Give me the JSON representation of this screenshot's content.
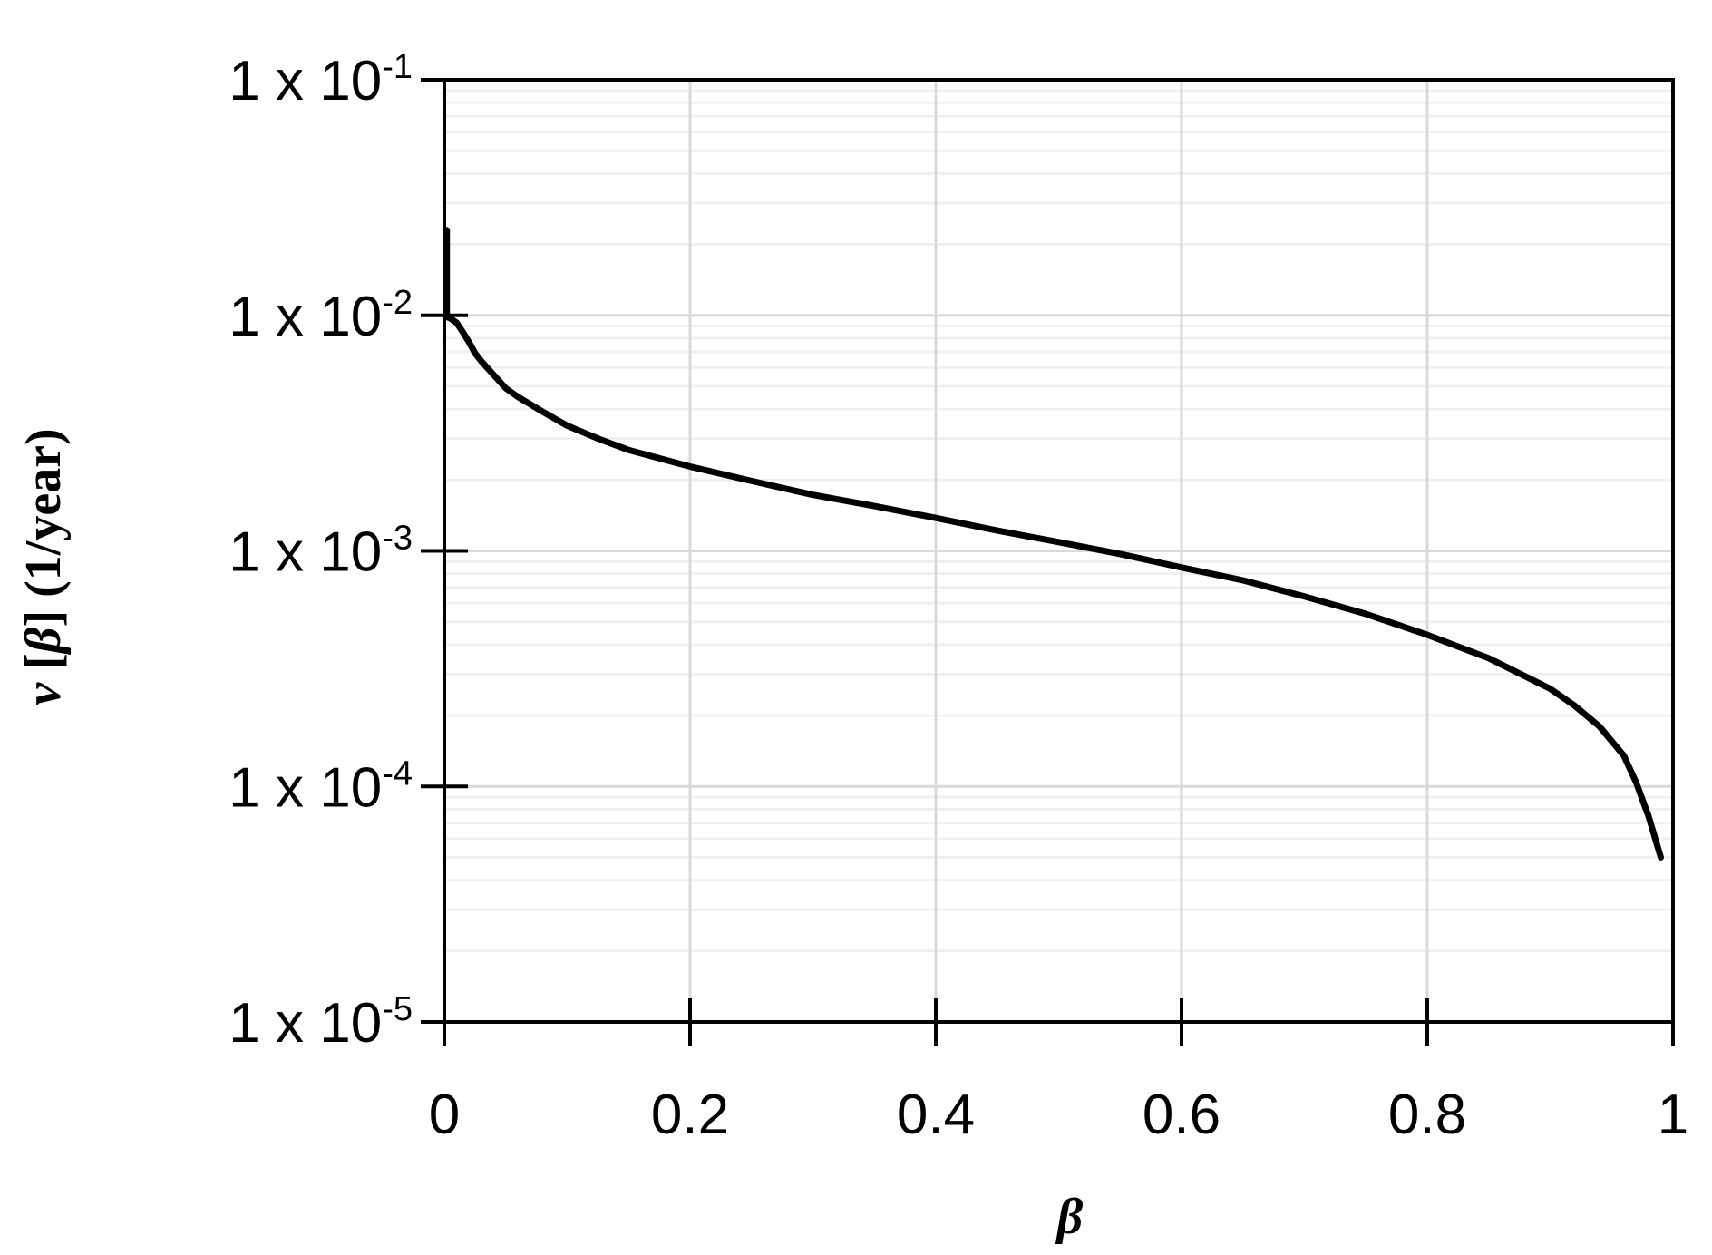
{
  "chart_data": {
    "type": "line",
    "xlabel": "β",
    "ylabel": {
      "var": "ν",
      "arg": "β",
      "unit": "(1/year)"
    },
    "xlim": [
      0,
      1
    ],
    "ylim": [
      1e-05,
      0.1
    ],
    "yscale": "log",
    "grid": true,
    "x_ticks": [
      "0",
      "0.2",
      "0.4",
      "0.6",
      "0.8",
      "1"
    ],
    "y_ticks": [
      {
        "value": 0.1,
        "base": "1 x 10",
        "exp": "-1"
      },
      {
        "value": 0.01,
        "base": "1 x 10",
        "exp": "-2"
      },
      {
        "value": 0.001,
        "base": "1 x 10",
        "exp": "-3"
      },
      {
        "value": 0.0001,
        "base": "1 x 10",
        "exp": "-4"
      },
      {
        "value": 1e-05,
        "base": "1 x 10",
        "exp": "-5"
      }
    ],
    "series": [
      {
        "color": "#000000",
        "x": [
          0.002,
          0.002,
          0.003,
          0.005,
          0.01,
          0.015,
          0.02,
          0.025,
          0.03,
          0.04,
          0.05,
          0.06,
          0.08,
          0.1,
          0.125,
          0.15,
          0.2,
          0.25,
          0.3,
          0.35,
          0.4,
          0.45,
          0.5,
          0.55,
          0.6,
          0.65,
          0.7,
          0.75,
          0.8,
          0.85,
          0.9,
          0.92,
          0.94,
          0.96,
          0.97,
          0.98,
          0.99
        ],
        "y": [
          0.023,
          0.0102,
          0.0098,
          0.0097,
          0.0093,
          0.0085,
          0.0077,
          0.0069,
          0.0064,
          0.0056,
          0.0049,
          0.0045,
          0.0039,
          0.0034,
          0.003,
          0.00268,
          0.00228,
          0.00198,
          0.00173,
          0.00155,
          0.00138,
          0.00122,
          0.00109,
          0.00097,
          0.00085,
          0.00075,
          0.00064,
          0.00054,
          0.00044,
          0.00035,
          0.00026,
          0.00022,
          0.00018,
          0.000135,
          0.000104,
          7.5e-05,
          5e-05
        ]
      }
    ]
  }
}
